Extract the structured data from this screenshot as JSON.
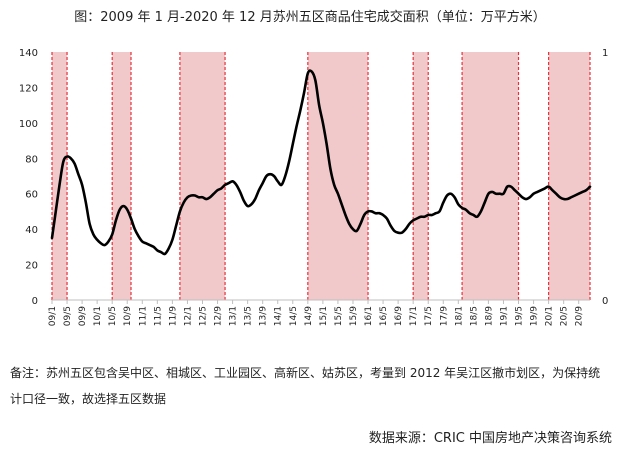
{
  "page": {
    "title": "图：2009 年 1 月-2020 年 12 月苏州五区商品住宅成交面积（单位：万平方米）",
    "note": "备注：苏州五区包含吴中区、相城区、工业园区、高新区、姑苏区，考量到 2012 年吴江区撤市划区，为保持统计口径一致，故选择五区数据",
    "source": "数据来源：CRIC 中国房地产决策咨询系统"
  },
  "colors": {
    "line": "#000000",
    "band_fill": "#f2c9cb",
    "band_border": "#e8303a",
    "axis": "#bfbfbf"
  },
  "chart_data": {
    "type": "line",
    "title": "图：2009 年 1 月-2020 年 12 月苏州五区商品住宅成交面积（单位：万平方米）",
    "xlabel": "",
    "ylabel": "",
    "ylim": [
      0,
      140
    ],
    "yticks": [
      0,
      20,
      40,
      60,
      80,
      100,
      120,
      140
    ],
    "y2lim": [
      0,
      1
    ],
    "y2ticks": [
      0,
      1
    ],
    "xlim": [
      "09/1",
      "20/12"
    ],
    "xticks": [
      "09/1",
      "09/5",
      "09/9",
      "10/1",
      "10/5",
      "10/9",
      "11/1",
      "11/5",
      "11/9",
      "12/1",
      "12/5",
      "12/9",
      "13/1",
      "13/5",
      "13/9",
      "14/1",
      "14/5",
      "14/9",
      "15/1",
      "15/5",
      "15/9",
      "16/1",
      "16/5",
      "16/9",
      "17/1",
      "17/5",
      "17/9",
      "18/1",
      "18/5",
      "18/9",
      "19/1",
      "19/5",
      "19/9",
      "20/1",
      "20/5",
      "20/9"
    ],
    "grid": false,
    "legend": "none",
    "shaded_periods": [
      {
        "start": "09/1",
        "end": "09/5"
      },
      {
        "start": "10/5",
        "end": "10/10"
      },
      {
        "start": "11/11",
        "end": "12/11"
      },
      {
        "start": "14/9",
        "end": "16/1"
      },
      {
        "start": "17/1",
        "end": "17/5"
      },
      {
        "start": "18/2",
        "end": "19/5"
      },
      {
        "start": "20/1",
        "end": "20/12"
      }
    ],
    "series": [
      {
        "points": [
          [
            "09/1",
            35
          ],
          [
            "09/2",
            50
          ],
          [
            "09/3",
            65
          ],
          [
            "09/4",
            78
          ],
          [
            "09/5",
            81
          ],
          [
            "09/6",
            80
          ],
          [
            "09/7",
            77
          ],
          [
            "09/8",
            71
          ],
          [
            "09/9",
            65
          ],
          [
            "09/10",
            55
          ],
          [
            "09/11",
            43
          ],
          [
            "09/12",
            37
          ],
          [
            "10/1",
            34
          ],
          [
            "10/2",
            32
          ],
          [
            "10/3",
            31
          ],
          [
            "10/4",
            33
          ],
          [
            "10/5",
            37
          ],
          [
            "10/6",
            45
          ],
          [
            "10/7",
            51
          ],
          [
            "10/8",
            53
          ],
          [
            "10/9",
            51
          ],
          [
            "10/10",
            46
          ],
          [
            "10/11",
            40
          ],
          [
            "10/12",
            36
          ],
          [
            "11/1",
            33
          ],
          [
            "11/2",
            32
          ],
          [
            "11/3",
            31
          ],
          [
            "11/4",
            30
          ],
          [
            "11/5",
            28
          ],
          [
            "11/6",
            27
          ],
          [
            "11/7",
            26
          ],
          [
            "11/8",
            29
          ],
          [
            "11/9",
            34
          ],
          [
            "11/10",
            42
          ],
          [
            "11/11",
            50
          ],
          [
            "11/12",
            55
          ],
          [
            "12/1",
            58
          ],
          [
            "12/2",
            59
          ],
          [
            "12/3",
            59
          ],
          [
            "12/4",
            58
          ],
          [
            "12/5",
            58
          ],
          [
            "12/6",
            57
          ],
          [
            "12/7",
            58
          ],
          [
            "12/8",
            60
          ],
          [
            "12/9",
            62
          ],
          [
            "12/10",
            63
          ],
          [
            "12/11",
            65
          ],
          [
            "12/12",
            66
          ],
          [
            "13/1",
            67
          ],
          [
            "13/2",
            65
          ],
          [
            "13/3",
            61
          ],
          [
            "13/4",
            56
          ],
          [
            "13/5",
            53
          ],
          [
            "13/6",
            54
          ],
          [
            "13/7",
            57
          ],
          [
            "13/8",
            62
          ],
          [
            "13/9",
            66
          ],
          [
            "13/10",
            70
          ],
          [
            "13/11",
            71
          ],
          [
            "13/12",
            70
          ],
          [
            "14/1",
            67
          ],
          [
            "14/2",
            65
          ],
          [
            "14/3",
            70
          ],
          [
            "14/4",
            78
          ],
          [
            "14/5",
            88
          ],
          [
            "14/6",
            98
          ],
          [
            "14/7",
            107
          ],
          [
            "14/8",
            117
          ],
          [
            "14/9",
            128
          ],
          [
            "14/10",
            129
          ],
          [
            "14/11",
            124
          ],
          [
            "14/12",
            110
          ],
          [
            "15/1",
            100
          ],
          [
            "15/2",
            88
          ],
          [
            "15/3",
            74
          ],
          [
            "15/4",
            65
          ],
          [
            "15/5",
            60
          ],
          [
            "15/6",
            54
          ],
          [
            "15/7",
            48
          ],
          [
            "15/8",
            43
          ],
          [
            "15/9",
            40
          ],
          [
            "15/10",
            39
          ],
          [
            "15/11",
            43
          ],
          [
            "15/12",
            48
          ],
          [
            "16/1",
            50
          ],
          [
            "16/2",
            50
          ],
          [
            "16/3",
            49
          ],
          [
            "16/4",
            49
          ],
          [
            "16/5",
            48
          ],
          [
            "16/6",
            46
          ],
          [
            "16/7",
            42
          ],
          [
            "16/8",
            39
          ],
          [
            "16/9",
            38
          ],
          [
            "16/10",
            38
          ],
          [
            "16/11",
            40
          ],
          [
            "16/12",
            43
          ],
          [
            "17/1",
            45
          ],
          [
            "17/2",
            46
          ],
          [
            "17/3",
            47
          ],
          [
            "17/4",
            47
          ],
          [
            "17/5",
            48
          ],
          [
            "17/6",
            48
          ],
          [
            "17/7",
            49
          ],
          [
            "17/8",
            50
          ],
          [
            "17/9",
            55
          ],
          [
            "17/10",
            59
          ],
          [
            "17/11",
            60
          ],
          [
            "17/12",
            58
          ],
          [
            "18/1",
            54
          ],
          [
            "18/2",
            52
          ],
          [
            "18/3",
            51
          ],
          [
            "18/4",
            49
          ],
          [
            "18/5",
            48
          ],
          [
            "18/6",
            47
          ],
          [
            "18/7",
            50
          ],
          [
            "18/8",
            55
          ],
          [
            "18/9",
            60
          ],
          [
            "18/10",
            61
          ],
          [
            "18/11",
            60
          ],
          [
            "18/12",
            60
          ],
          [
            "19/1",
            60
          ],
          [
            "19/2",
            64
          ],
          [
            "19/3",
            64
          ],
          [
            "19/4",
            62
          ],
          [
            "19/5",
            60
          ],
          [
            "19/6",
            58
          ],
          [
            "19/7",
            57
          ],
          [
            "19/8",
            58
          ],
          [
            "19/9",
            60
          ],
          [
            "19/10",
            61
          ],
          [
            "19/11",
            62
          ],
          [
            "19/12",
            63
          ],
          [
            "20/1",
            64
          ],
          [
            "20/2",
            62
          ],
          [
            "20/3",
            60
          ],
          [
            "20/4",
            58
          ],
          [
            "20/5",
            57
          ],
          [
            "20/6",
            57
          ],
          [
            "20/7",
            58
          ],
          [
            "20/8",
            59
          ],
          [
            "20/9",
            60
          ],
          [
            "20/10",
            61
          ],
          [
            "20/11",
            62
          ],
          [
            "20/12",
            64
          ]
        ]
      }
    ]
  }
}
